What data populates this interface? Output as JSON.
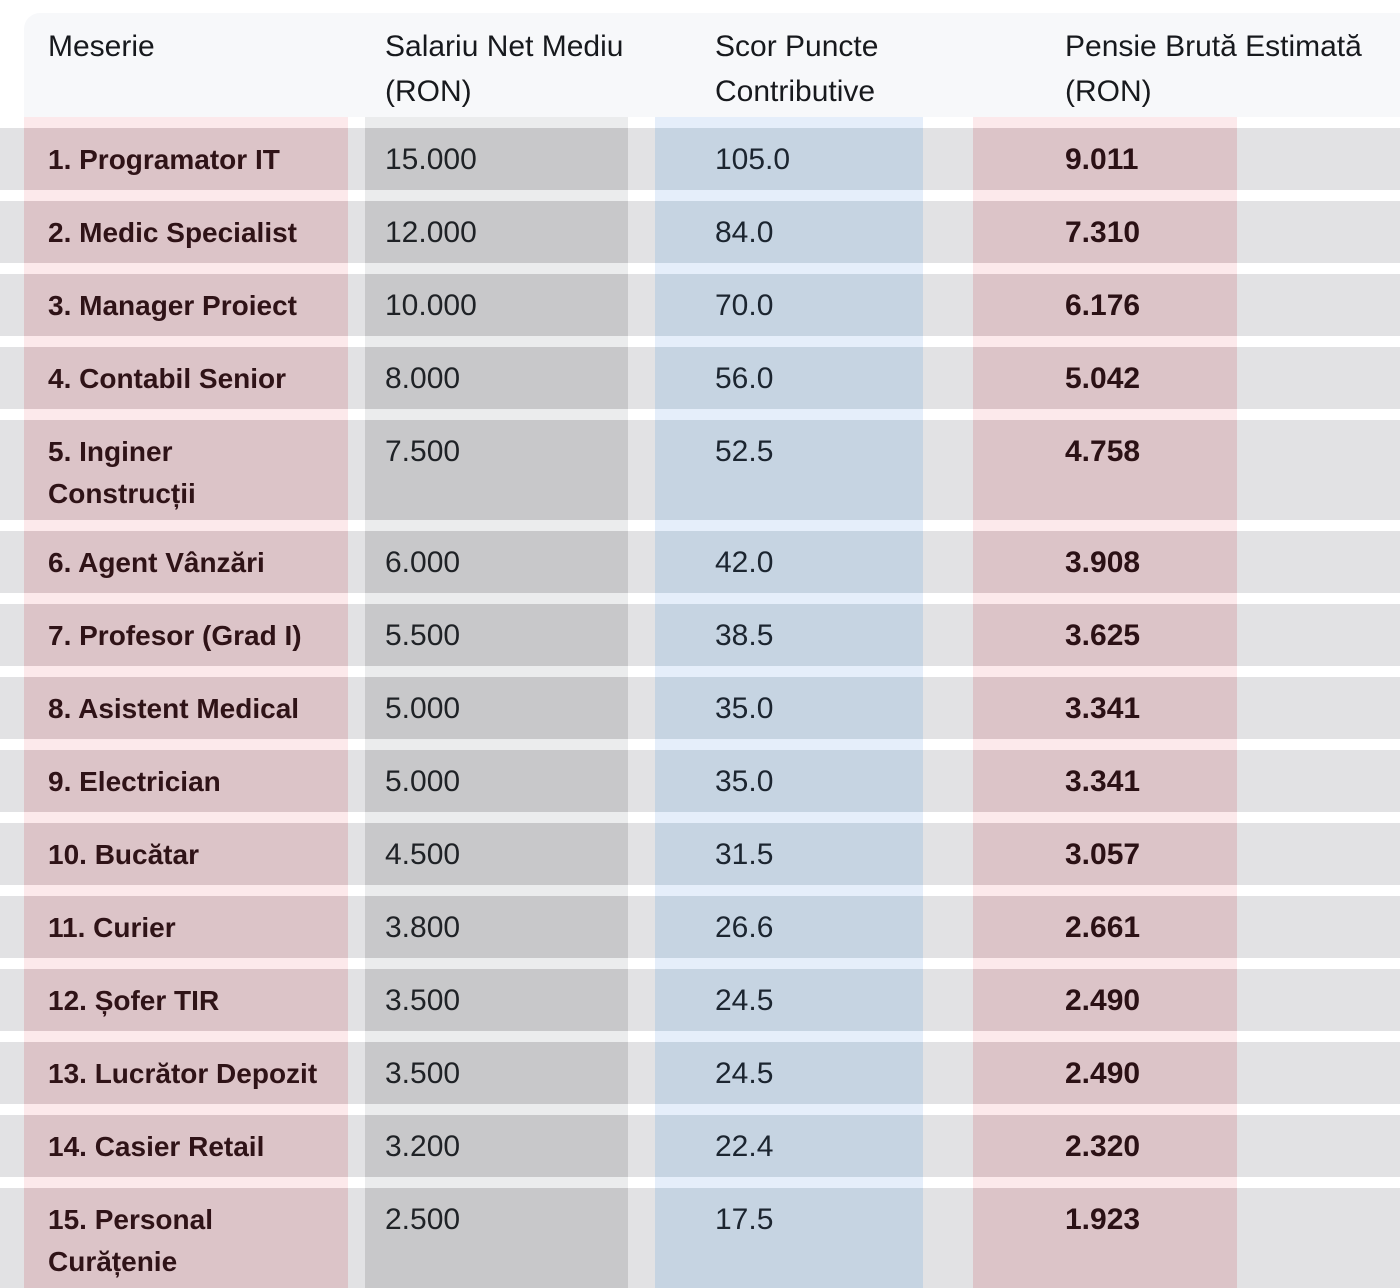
{
  "chart_data": {
    "type": "table",
    "columns": [
      {
        "label": "Meserie"
      },
      {
        "label": "Salariu Net Mediu\n(RON)"
      },
      {
        "label": "Scor Puncte\nContributive"
      },
      {
        "label": "Pensie Brută Estimată\n(RON)"
      }
    ],
    "rows": [
      {
        "meserie": "1. Programator IT",
        "salariu": "15.000",
        "scor": "105.0",
        "pensie": "9.011"
      },
      {
        "meserie": "2. Medic Specialist",
        "salariu": "12.000",
        "scor": "84.0",
        "pensie": "7.310"
      },
      {
        "meserie": "3. Manager Proiect",
        "salariu": "10.000",
        "scor": "70.0",
        "pensie": "6.176"
      },
      {
        "meserie": "4. Contabil Senior",
        "salariu": "8.000",
        "scor": "56.0",
        "pensie": "5.042"
      },
      {
        "meserie": "5. Inginer\nConstrucții",
        "salariu": "7.500",
        "scor": "52.5",
        "pensie": "4.758"
      },
      {
        "meserie": "6. Agent Vânzări",
        "salariu": "6.000",
        "scor": "42.0",
        "pensie": "3.908"
      },
      {
        "meserie": "7. Profesor (Grad I)",
        "salariu": "5.500",
        "scor": "38.5",
        "pensie": "3.625"
      },
      {
        "meserie": "8. Asistent Medical",
        "salariu": "5.000",
        "scor": "35.0",
        "pensie": "3.341"
      },
      {
        "meserie": "9. Electrician",
        "salariu": "5.000",
        "scor": "35.0",
        "pensie": "3.341"
      },
      {
        "meserie": "10. Bucătar",
        "salariu": "4.500",
        "scor": "31.5",
        "pensie": "3.057"
      },
      {
        "meserie": "11. Curier",
        "salariu": "3.800",
        "scor": "26.6",
        "pensie": "2.661"
      },
      {
        "meserie": "12. Șofer TIR",
        "salariu": "3.500",
        "scor": "24.5",
        "pensie": "2.490"
      },
      {
        "meserie": "13. Lucrător Depozit",
        "salariu": "3.500",
        "scor": "24.5",
        "pensie": "2.490"
      },
      {
        "meserie": "14. Casier Retail",
        "salariu": "3.200",
        "scor": "22.4",
        "pensie": "2.320"
      },
      {
        "meserie": "15. Personal\nCurățenie",
        "salariu": "2.500",
        "scor": "17.5",
        "pensie": "1.923"
      }
    ],
    "colors": {
      "page_bg": "#ffffff",
      "header_card_bg": "#f7f8fa",
      "row_stripe_gray": "#e2e2e4",
      "salary_band_on_row": "#c8c8ca",
      "salary_band_on_gap": "#ebeced",
      "pink_band_on_row": "#dcc4c8",
      "pink_band_on_gap": "#fce9eb",
      "blue_band_on_row": "#c6d4e2",
      "blue_band_on_gap": "#e5eefa",
      "header_text": "#17191d",
      "meserie_text": "#2f1317",
      "pensie_text": "#2b1115"
    }
  }
}
